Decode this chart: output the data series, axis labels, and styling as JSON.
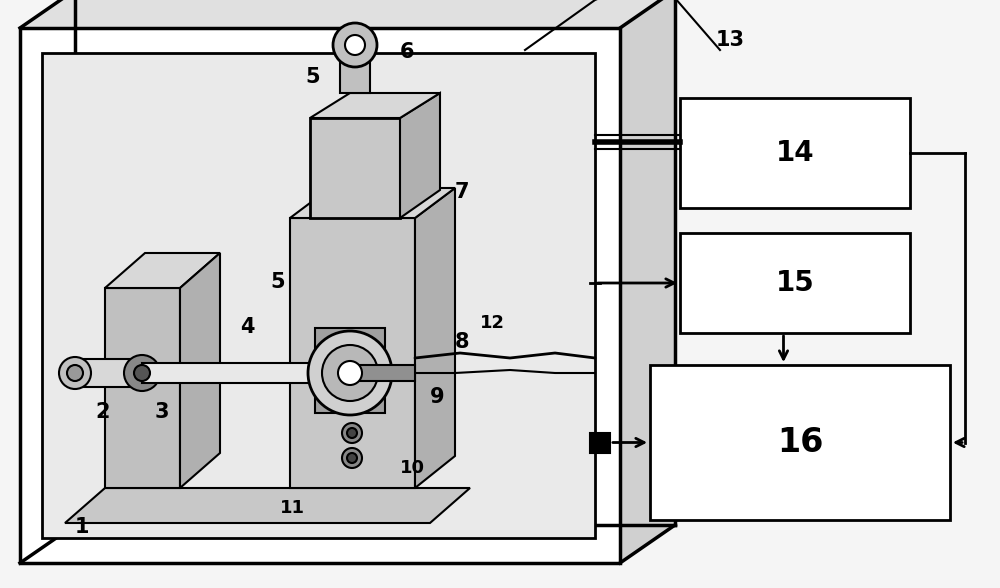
{
  "bg_color": "#f5f5f5",
  "box_color": "#ffffff",
  "line_color": "#000000",
  "lw_outer": 2.5,
  "lw_med": 2.0,
  "lw_thin": 1.5,
  "font_bold": true,
  "label14": "14",
  "label15": "15",
  "label16": "16",
  "label13": "13",
  "fs_num": 20,
  "fs_label": 15,
  "fs_small": 13
}
